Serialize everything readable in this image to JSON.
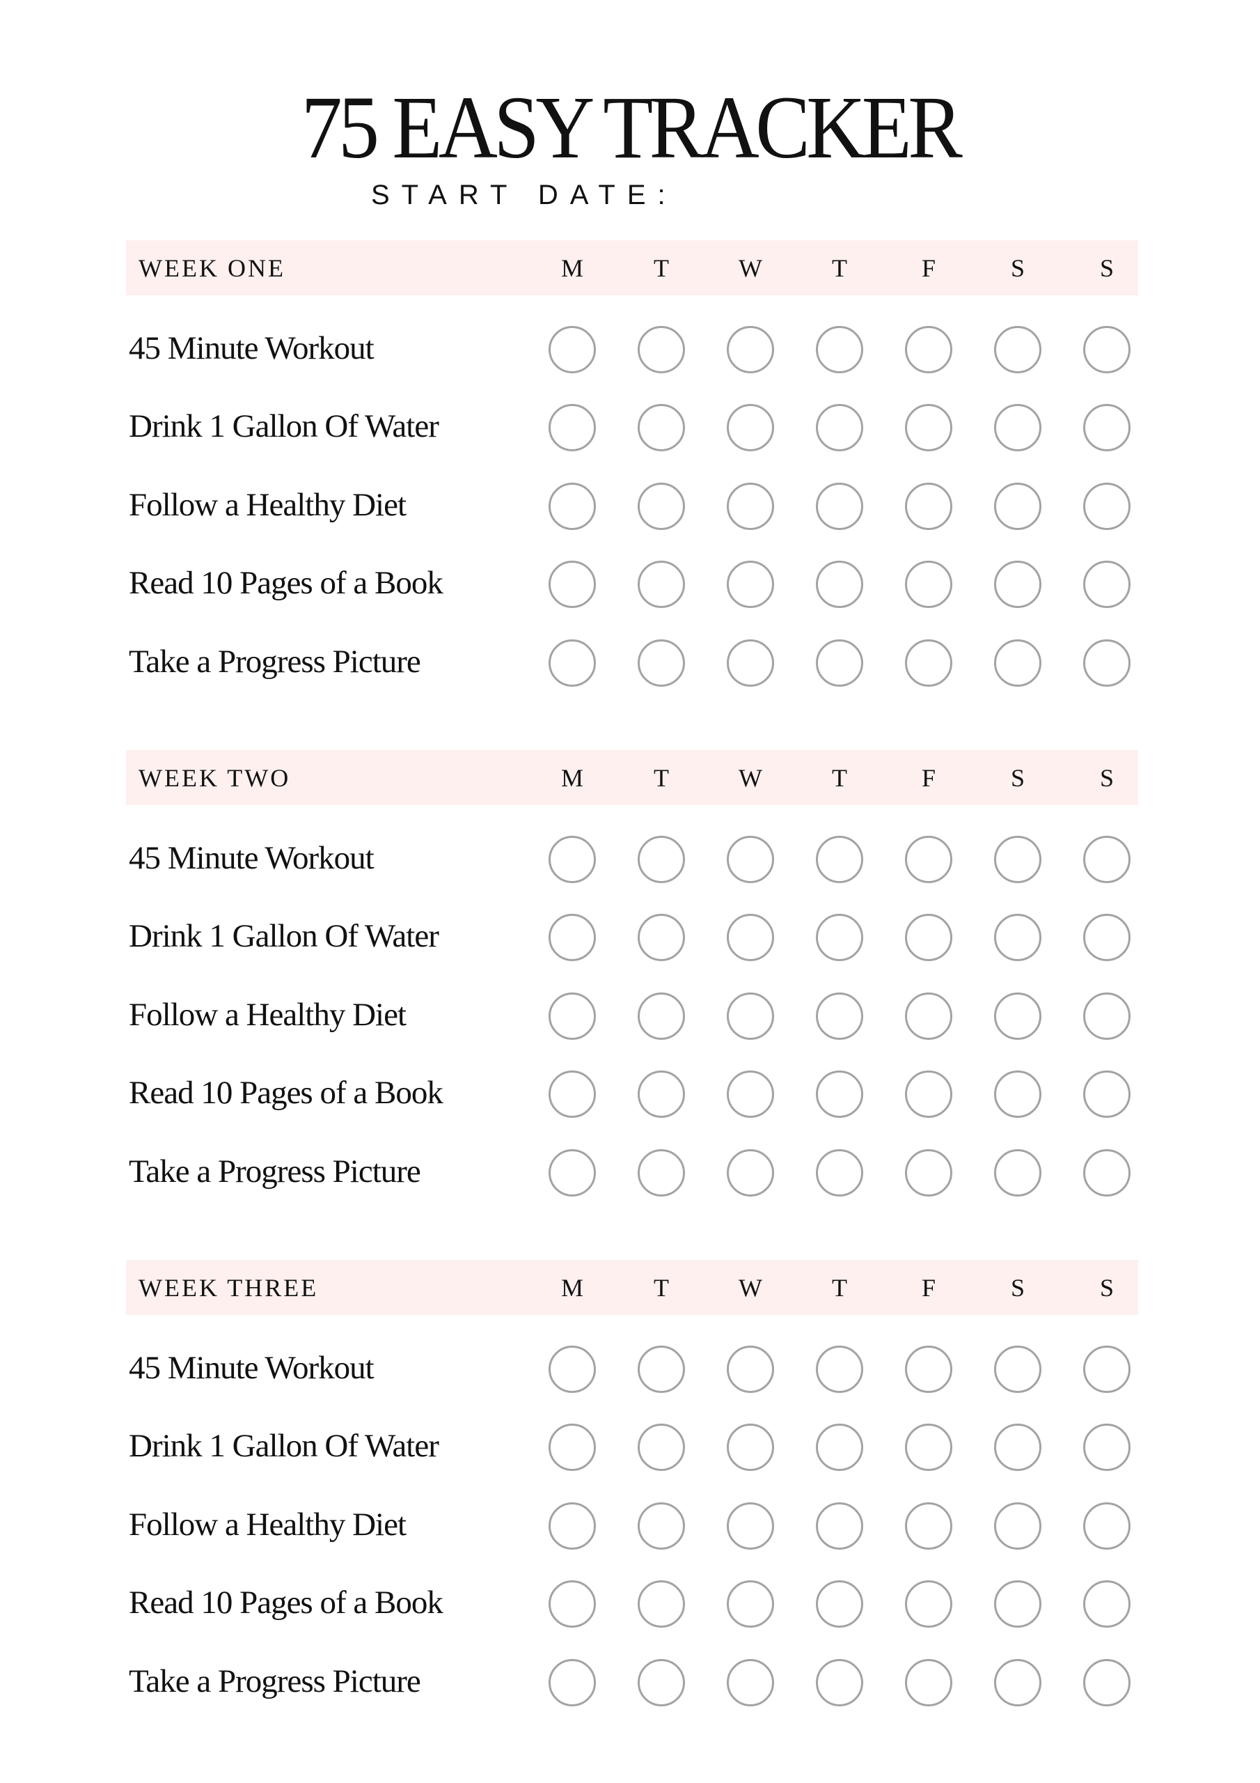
{
  "title": "75 EASY TRACKER",
  "start_date_label": "START DATE:",
  "days": [
    "M",
    "T",
    "W",
    "T",
    "F",
    "S",
    "S"
  ],
  "tasks": [
    "45 Minute Workout",
    "Drink 1 Gallon Of Water",
    "Follow a Healthy Diet",
    "Read 10 Pages of a Book",
    "Take a Progress Picture"
  ],
  "weeks": [
    {
      "label": "WEEK ONE"
    },
    {
      "label": "WEEK TWO"
    },
    {
      "label": "WEEK THREE"
    }
  ],
  "colors": {
    "header_band": "#fdf0ef",
    "circle_stroke": "#a3a3a3",
    "text": "#111111"
  }
}
